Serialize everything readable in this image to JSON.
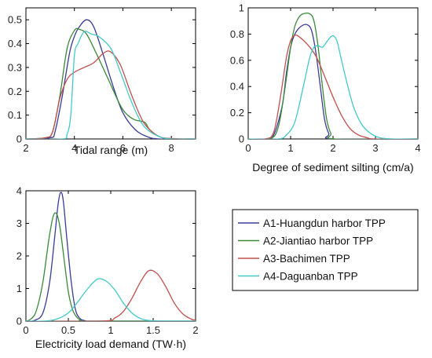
{
  "chart_data": [
    {
      "type": "line",
      "xlabel": "Tidal range  (m)",
      "ylabel": "",
      "xlim": [
        2,
        9
      ],
      "ylim": [
        0,
        0.55
      ],
      "x_ticks": [
        "2",
        "4",
        "6",
        "8"
      ],
      "y_ticks": [
        "0",
        "0.1",
        "0.2",
        "0.3",
        "0.4",
        "0.5"
      ],
      "series": [
        {
          "name": "A1-Huangdun harbor TPP",
          "color": "#3b3b98",
          "points": [
            [
              2,
              0
            ],
            [
              3.0,
              0.005
            ],
            [
              3.2,
              0.03
            ],
            [
              3.5,
              0.18
            ],
            [
              3.8,
              0.36
            ],
            [
              4.0,
              0.43
            ],
            [
              4.2,
              0.47
            ],
            [
              4.5,
              0.5
            ],
            [
              4.8,
              0.47
            ],
            [
              5.2,
              0.35
            ],
            [
              5.6,
              0.22
            ],
            [
              6.0,
              0.11
            ],
            [
              6.5,
              0.04
            ],
            [
              7.0,
              0.01
            ],
            [
              7.5,
              0.0
            ],
            [
              9,
              0
            ]
          ]
        },
        {
          "name": "A2-Jiantiao harbor TPP",
          "color": "#3a8a3a",
          "points": [
            [
              2,
              0
            ],
            [
              2.8,
              0.005
            ],
            [
              3.1,
              0.03
            ],
            [
              3.4,
              0.18
            ],
            [
              3.7,
              0.38
            ],
            [
              4.0,
              0.455
            ],
            [
              4.2,
              0.46
            ],
            [
              4.5,
              0.44
            ],
            [
              4.9,
              0.36
            ],
            [
              5.4,
              0.25
            ],
            [
              5.9,
              0.14
            ],
            [
              6.2,
              0.1
            ],
            [
              6.5,
              0.08
            ],
            [
              6.9,
              0.07
            ],
            [
              7.1,
              0.04
            ],
            [
              7.5,
              0.01
            ],
            [
              8.0,
              0.0
            ],
            [
              9,
              0
            ]
          ]
        },
        {
          "name": "A3-Bachimen TPP",
          "color": "#c0504d",
          "points": [
            [
              2,
              0
            ],
            [
              2.8,
              0.005
            ],
            [
              3.1,
              0.03
            ],
            [
              3.4,
              0.17
            ],
            [
              3.7,
              0.25
            ],
            [
              4.0,
              0.28
            ],
            [
              4.4,
              0.3
            ],
            [
              4.8,
              0.32
            ],
            [
              5.2,
              0.36
            ],
            [
              5.5,
              0.365
            ],
            [
              5.9,
              0.31
            ],
            [
              6.3,
              0.2
            ],
            [
              6.7,
              0.1
            ],
            [
              7.0,
              0.05
            ],
            [
              7.5,
              0.01
            ],
            [
              8.0,
              0.002
            ],
            [
              9,
              0
            ]
          ]
        },
        {
          "name": "A4-Daguanban TPP",
          "color": "#45c8c8",
          "points": [
            [
              2,
              0
            ],
            [
              3.5,
              0.0
            ],
            [
              3.7,
              0.02
            ],
            [
              3.85,
              0.1
            ],
            [
              4.0,
              0.35
            ],
            [
              4.15,
              0.4
            ],
            [
              4.4,
              0.45
            ],
            [
              4.7,
              0.44
            ],
            [
              5.0,
              0.43
            ],
            [
              5.5,
              0.38
            ],
            [
              5.9,
              0.28
            ],
            [
              6.3,
              0.17
            ],
            [
              6.7,
              0.08
            ],
            [
              7.0,
              0.04
            ],
            [
              7.5,
              0.01
            ],
            [
              8.0,
              0.0
            ],
            [
              9,
              0
            ]
          ]
        }
      ]
    },
    {
      "type": "line",
      "xlabel": "Degree of sediment silting  (cm/a)",
      "ylabel": "",
      "xlim": [
        0,
        4
      ],
      "ylim": [
        0,
        1
      ],
      "x_ticks": [
        "0",
        "1",
        "2",
        "3",
        "4"
      ],
      "y_ticks": [
        "0",
        "0.2",
        "0.4",
        "0.6",
        "0.8",
        "1"
      ],
      "series": [
        {
          "name": "A1-Huangdun harbor TPP",
          "color": "#3b3b98",
          "points": [
            [
              0,
              0
            ],
            [
              0.4,
              0.0
            ],
            [
              0.6,
              0.03
            ],
            [
              0.8,
              0.25
            ],
            [
              0.9,
              0.5
            ],
            [
              1.0,
              0.7
            ],
            [
              1.1,
              0.8
            ],
            [
              1.25,
              0.86
            ],
            [
              1.4,
              0.87
            ],
            [
              1.5,
              0.82
            ],
            [
              1.6,
              0.65
            ],
            [
              1.7,
              0.4
            ],
            [
              1.8,
              0.15
            ],
            [
              1.9,
              0.04
            ],
            [
              2.0,
              0.0
            ],
            [
              4,
              0
            ]
          ]
        },
        {
          "name": "A2-Jiantiao harbor TPP",
          "color": "#3a8a3a",
          "points": [
            [
              0,
              0
            ],
            [
              0.5,
              0.0
            ],
            [
              0.7,
              0.08
            ],
            [
              0.85,
              0.35
            ],
            [
              1.0,
              0.7
            ],
            [
              1.1,
              0.86
            ],
            [
              1.2,
              0.93
            ],
            [
              1.3,
              0.955
            ],
            [
              1.45,
              0.955
            ],
            [
              1.55,
              0.9
            ],
            [
              1.65,
              0.7
            ],
            [
              1.75,
              0.4
            ],
            [
              1.85,
              0.15
            ],
            [
              1.95,
              0.04
            ],
            [
              2.05,
              0.0
            ],
            [
              4,
              0
            ]
          ]
        },
        {
          "name": "A3-Bachimen TPP",
          "color": "#c0504d",
          "points": [
            [
              0,
              0
            ],
            [
              0.4,
              0.0
            ],
            [
              0.6,
              0.05
            ],
            [
              0.75,
              0.3
            ],
            [
              0.9,
              0.62
            ],
            [
              1.0,
              0.75
            ],
            [
              1.1,
              0.79
            ],
            [
              1.2,
              0.78
            ],
            [
              1.4,
              0.72
            ],
            [
              1.6,
              0.63
            ],
            [
              1.8,
              0.48
            ],
            [
              2.0,
              0.32
            ],
            [
              2.2,
              0.18
            ],
            [
              2.4,
              0.08
            ],
            [
              2.6,
              0.03
            ],
            [
              2.8,
              0.01
            ],
            [
              3.0,
              0.0
            ],
            [
              4,
              0
            ]
          ]
        },
        {
          "name": "A4-Daguanban TPP",
          "color": "#45c8c8",
          "points": [
            [
              0,
              0
            ],
            [
              0.7,
              0.0
            ],
            [
              0.9,
              0.03
            ],
            [
              1.1,
              0.13
            ],
            [
              1.3,
              0.4
            ],
            [
              1.45,
              0.62
            ],
            [
              1.55,
              0.7
            ],
            [
              1.65,
              0.71
            ],
            [
              1.75,
              0.7
            ],
            [
              1.85,
              0.74
            ],
            [
              1.95,
              0.78
            ],
            [
              2.02,
              0.785
            ],
            [
              2.1,
              0.74
            ],
            [
              2.2,
              0.6
            ],
            [
              2.35,
              0.4
            ],
            [
              2.5,
              0.23
            ],
            [
              2.7,
              0.1
            ],
            [
              2.9,
              0.04
            ],
            [
              3.1,
              0.01
            ],
            [
              3.4,
              0.0
            ],
            [
              4,
              0
            ]
          ]
        }
      ]
    },
    {
      "type": "line",
      "xlabel": "Electricity load demand  (TW·h)",
      "ylabel": "",
      "xlim": [
        0,
        2
      ],
      "ylim": [
        0,
        4
      ],
      "x_ticks": [
        "0",
        "0.5",
        "1",
        "1.5",
        "2"
      ],
      "y_ticks": [
        "0",
        "1",
        "2",
        "3",
        "4"
      ],
      "series": [
        {
          "name": "A1-Huangdun harbor TPP",
          "color": "#3b3b98",
          "points": [
            [
              0,
              0
            ],
            [
              0.1,
              0.02
            ],
            [
              0.2,
              0.25
            ],
            [
              0.28,
              1.2
            ],
            [
              0.34,
              2.6
            ],
            [
              0.38,
              3.6
            ],
            [
              0.41,
              3.95
            ],
            [
              0.44,
              3.7
            ],
            [
              0.48,
              2.6
            ],
            [
              0.53,
              1.3
            ],
            [
              0.58,
              0.4
            ],
            [
              0.63,
              0.1
            ],
            [
              0.7,
              0.01
            ],
            [
              0.8,
              0.0
            ],
            [
              2,
              0
            ]
          ]
        },
        {
          "name": "A2-Jiantiao harbor TPP",
          "color": "#3a8a3a",
          "points": [
            [
              0,
              0
            ],
            [
              0.05,
              0.05
            ],
            [
              0.12,
              0.3
            ],
            [
              0.2,
              1.2
            ],
            [
              0.27,
              2.5
            ],
            [
              0.32,
              3.2
            ],
            [
              0.36,
              3.3
            ],
            [
              0.4,
              2.9
            ],
            [
              0.45,
              1.9
            ],
            [
              0.5,
              0.9
            ],
            [
              0.55,
              0.35
            ],
            [
              0.6,
              0.12
            ],
            [
              0.65,
              0.03
            ],
            [
              0.75,
              0.0
            ],
            [
              2,
              0
            ]
          ]
        },
        {
          "name": "A3-Bachimen TPP",
          "color": "#c0504d",
          "points": [
            [
              0,
              0
            ],
            [
              0.9,
              0.0
            ],
            [
              1.05,
              0.1
            ],
            [
              1.15,
              0.3
            ],
            [
              1.25,
              0.7
            ],
            [
              1.35,
              1.2
            ],
            [
              1.45,
              1.55
            ],
            [
              1.55,
              1.45
            ],
            [
              1.65,
              1.05
            ],
            [
              1.75,
              0.55
            ],
            [
              1.85,
              0.22
            ],
            [
              1.95,
              0.06
            ],
            [
              2.0,
              0.03
            ]
          ]
        },
        {
          "name": "A4-Daguanban TPP",
          "color": "#45c8c8",
          "points": [
            [
              0,
              0
            ],
            [
              0.2,
              0.0
            ],
            [
              0.35,
              0.05
            ],
            [
              0.5,
              0.25
            ],
            [
              0.6,
              0.55
            ],
            [
              0.7,
              0.9
            ],
            [
              0.8,
              1.2
            ],
            [
              0.86,
              1.3
            ],
            [
              0.95,
              1.22
            ],
            [
              1.05,
              0.95
            ],
            [
              1.15,
              0.55
            ],
            [
              1.25,
              0.25
            ],
            [
              1.35,
              0.08
            ],
            [
              1.45,
              0.02
            ],
            [
              1.6,
              0.0
            ],
            [
              2,
              0
            ]
          ]
        }
      ]
    }
  ],
  "legend": {
    "items": [
      {
        "label": "A1-Huangdun harbor TPP",
        "color": "#3b3b98"
      },
      {
        "label": "A2-Jiantiao harbor TPP",
        "color": "#3a8a3a"
      },
      {
        "label": "A3-Bachimen TPP",
        "color": "#c0504d"
      },
      {
        "label": "A4-Daguanban TPP",
        "color": "#45c8c8"
      }
    ]
  }
}
